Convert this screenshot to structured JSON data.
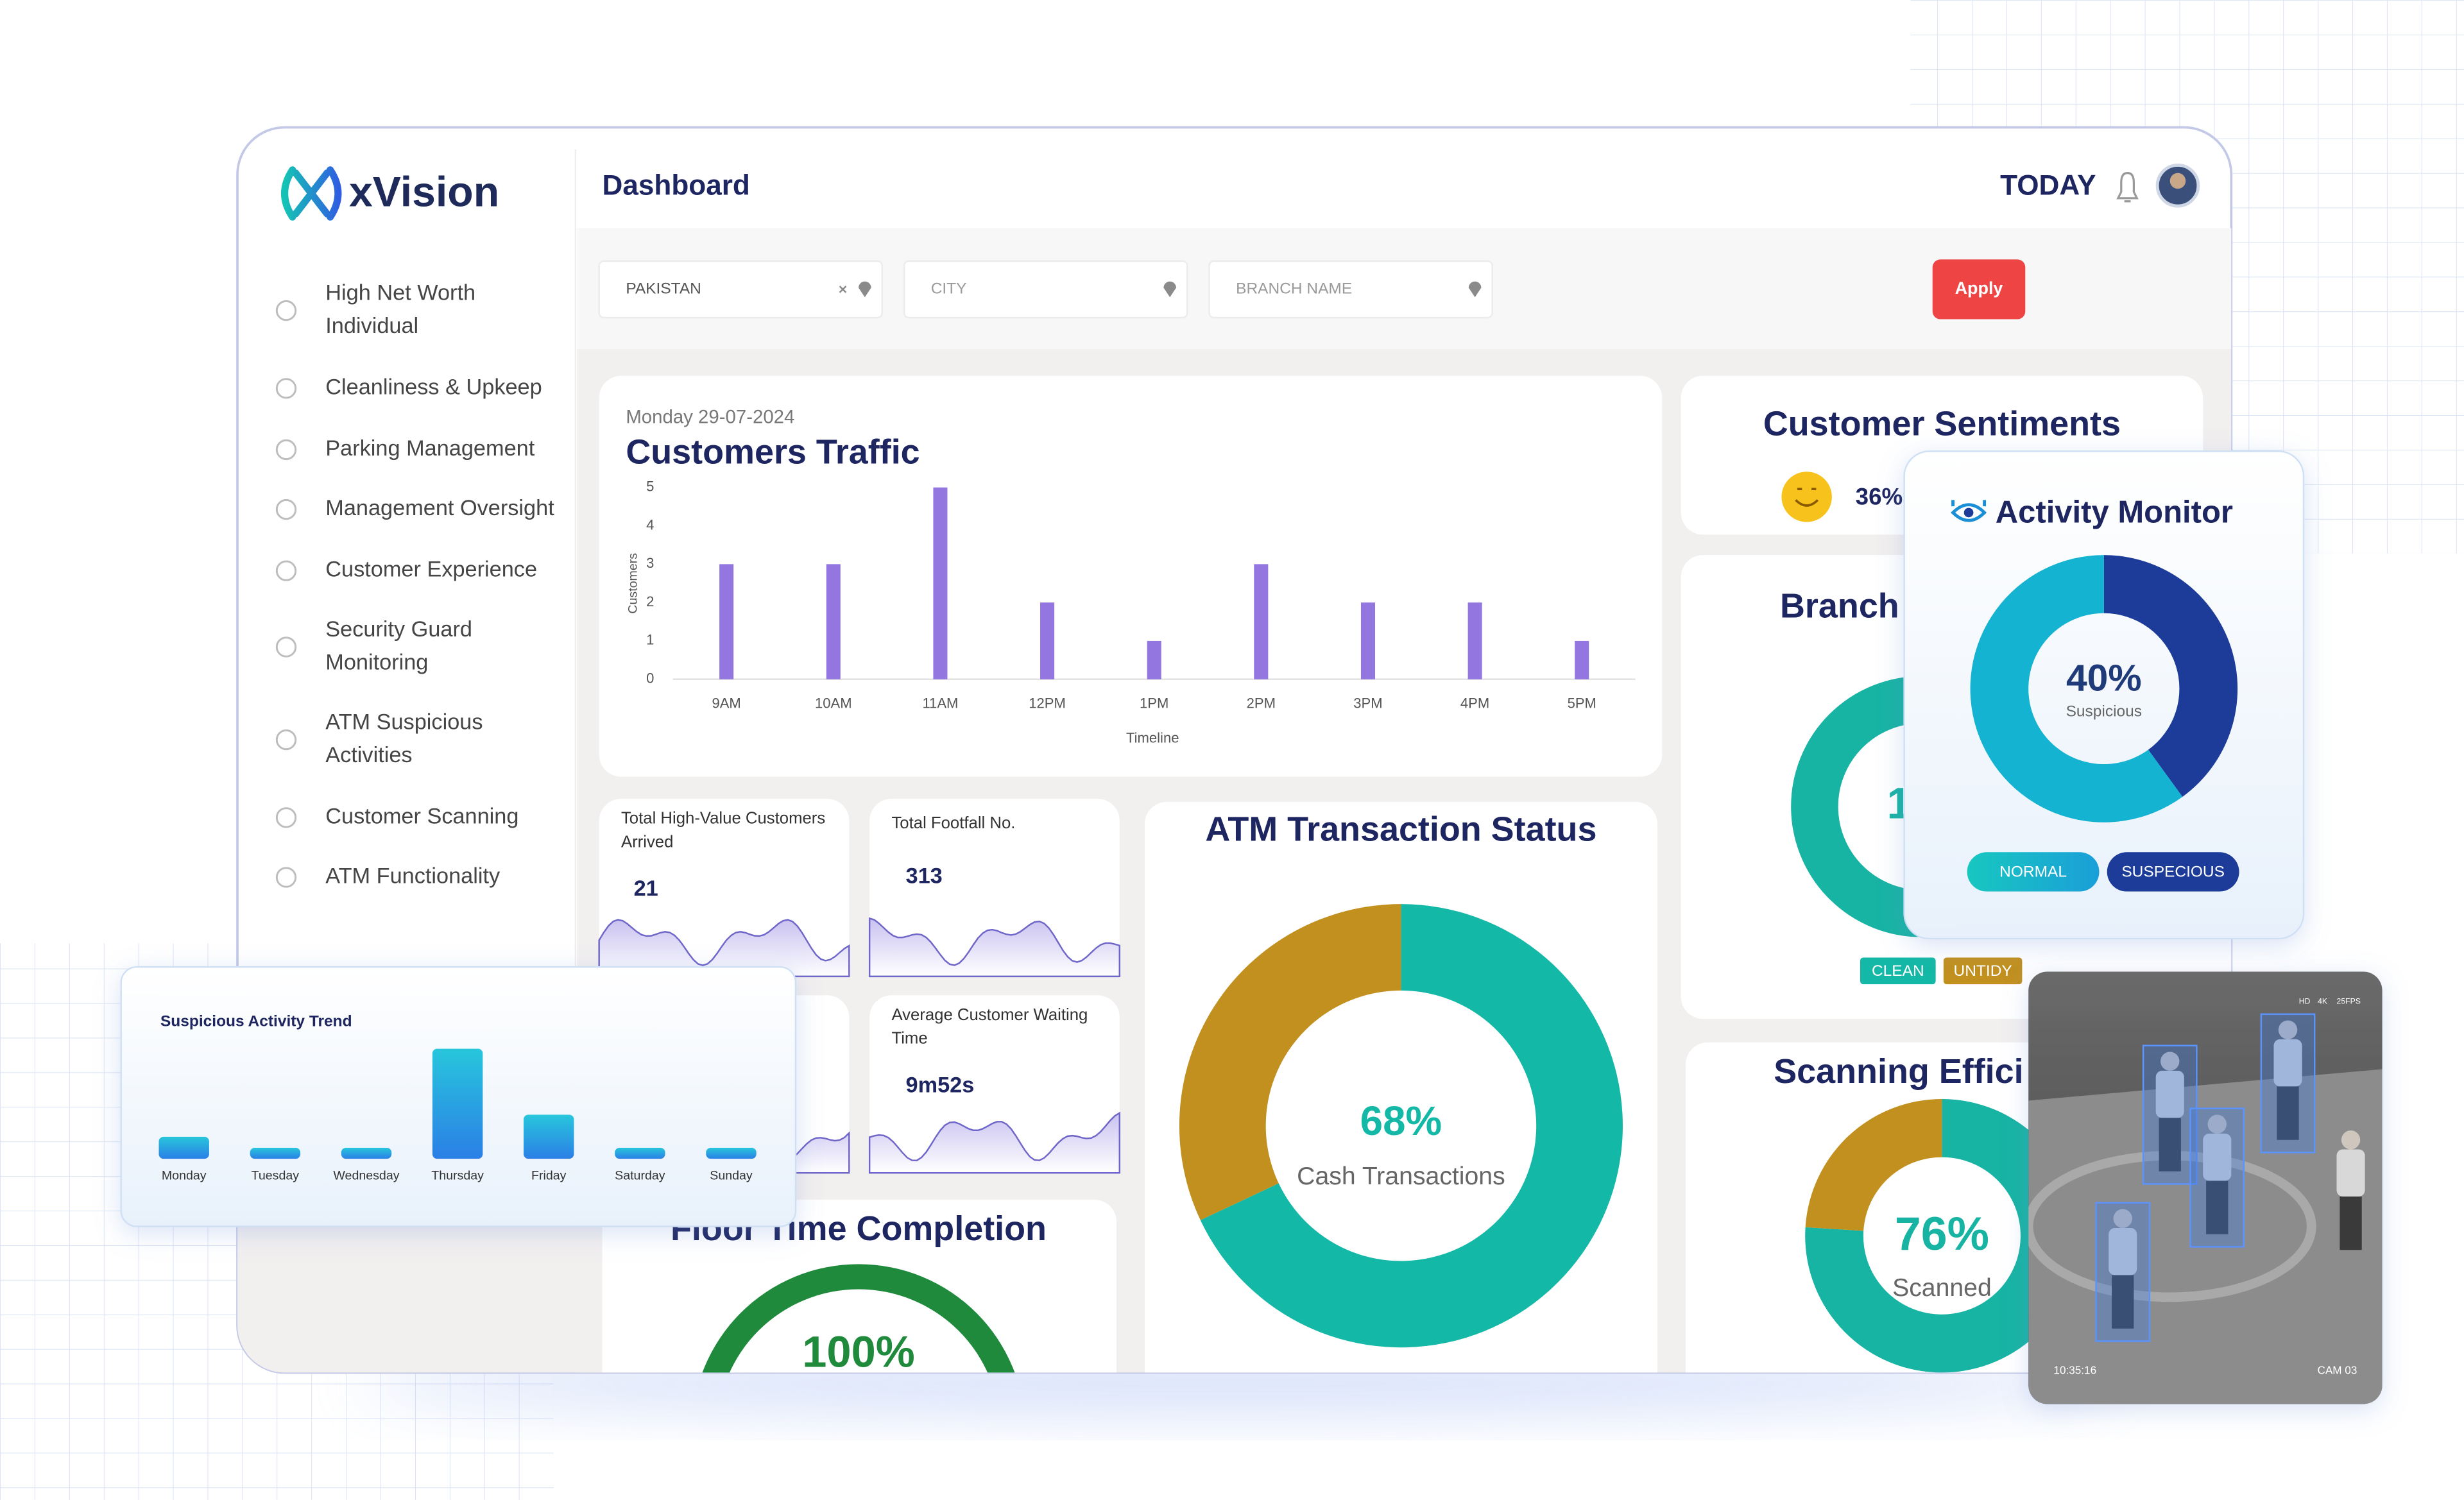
{
  "brand": "xVision",
  "header": {
    "title": "Dashboard",
    "period": "TODAY"
  },
  "nav": [
    [
      "High Net Worth",
      "Individual"
    ],
    [
      "Cleanliness & Upkeep"
    ],
    [
      "Parking Management"
    ],
    [
      "Management Oversight"
    ],
    [
      "Customer Experience"
    ],
    [
      "Security Guard",
      "Monitoring"
    ],
    [
      "ATM Suspicious",
      "Activities"
    ],
    [
      "Customer Scanning"
    ],
    [
      "ATM Functionality"
    ]
  ],
  "filters": {
    "fields": [
      "PAKISTAN",
      "CITY",
      "BRANCH NAME"
    ],
    "apply": "Apply"
  },
  "kpis": [
    {
      "label": [
        "Total High-Value Customers",
        "Arrived"
      ],
      "value": "21"
    },
    {
      "label": [
        "Total Footfall No."
      ],
      "value": "313"
    },
    {
      "label": [
        "Average Customer Waiting",
        "Time"
      ],
      "value": "9m52s"
    }
  ],
  "sentiments": {
    "title": "Customer Sentiments",
    "value": "36%"
  },
  "branch": {
    "title": "Branch",
    "center": "1",
    "legend": [
      "CLEAN",
      "UNTIDY"
    ],
    "legend_colors": [
      "#14b8a6",
      "#c1901f"
    ]
  },
  "activity": {
    "buttons": [
      "NORMAL",
      "SUSPECIOUS"
    ]
  },
  "camera": {
    "time": "10:35:16",
    "name": "CAM 03",
    "badges": [
      "HD",
      "4K",
      "25FPS"
    ]
  },
  "chart_data": [
    {
      "type": "bar",
      "subtitle": "Monday 29-07-2024",
      "title": "Customers Traffic",
      "y_label": "Customers",
      "x_label": "Timeline",
      "categories": [
        "9AM",
        "10AM",
        "11AM",
        "12PM",
        "1PM",
        "2PM",
        "3PM",
        "4PM",
        "5PM"
      ],
      "values": [
        3,
        3,
        5,
        2,
        1,
        3,
        2,
        2,
        1
      ],
      "color": "#9376e0",
      "ylim": [
        0,
        5
      ],
      "yticks": [
        0,
        1,
        2,
        3,
        4,
        5
      ]
    },
    {
      "type": "bar",
      "title": "Suspicious Activity Trend",
      "categories": [
        "Monday",
        "Tuesday",
        "Wednesday",
        "Thursday",
        "Friday",
        "Saturday",
        "Sunday"
      ],
      "values": [
        2,
        1,
        1,
        10,
        4,
        1,
        1
      ],
      "colors": [
        "#27c6dc",
        "#2b7fe6"
      ]
    },
    {
      "type": "donut",
      "title": "ATM Transaction Status",
      "values": [
        68,
        32
      ],
      "value_labels": [
        "68%",
        null
      ],
      "colors": [
        "#14b8a6",
        "#c1901f"
      ],
      "caption": "Cash Transactions"
    },
    {
      "type": "donut",
      "title": "Scanning Effici",
      "values": [
        76,
        24
      ],
      "value_labels": [
        "76%",
        null
      ],
      "colors": [
        "#17b3a3",
        "#c1901f"
      ],
      "caption": "Scanned"
    },
    {
      "type": "donut",
      "title": "Activity Monitor",
      "values": [
        40,
        60
      ],
      "value_labels": [
        "40%",
        null
      ],
      "colors": [
        "#1d3c9a",
        "#14b3d2"
      ],
      "caption": "Suspicious"
    },
    {
      "type": "gauge",
      "title": "Floor Time Completion",
      "values": [
        100
      ],
      "value_labels": [
        "100%"
      ],
      "colors": [
        "#1f8a3c"
      ]
    }
  ]
}
